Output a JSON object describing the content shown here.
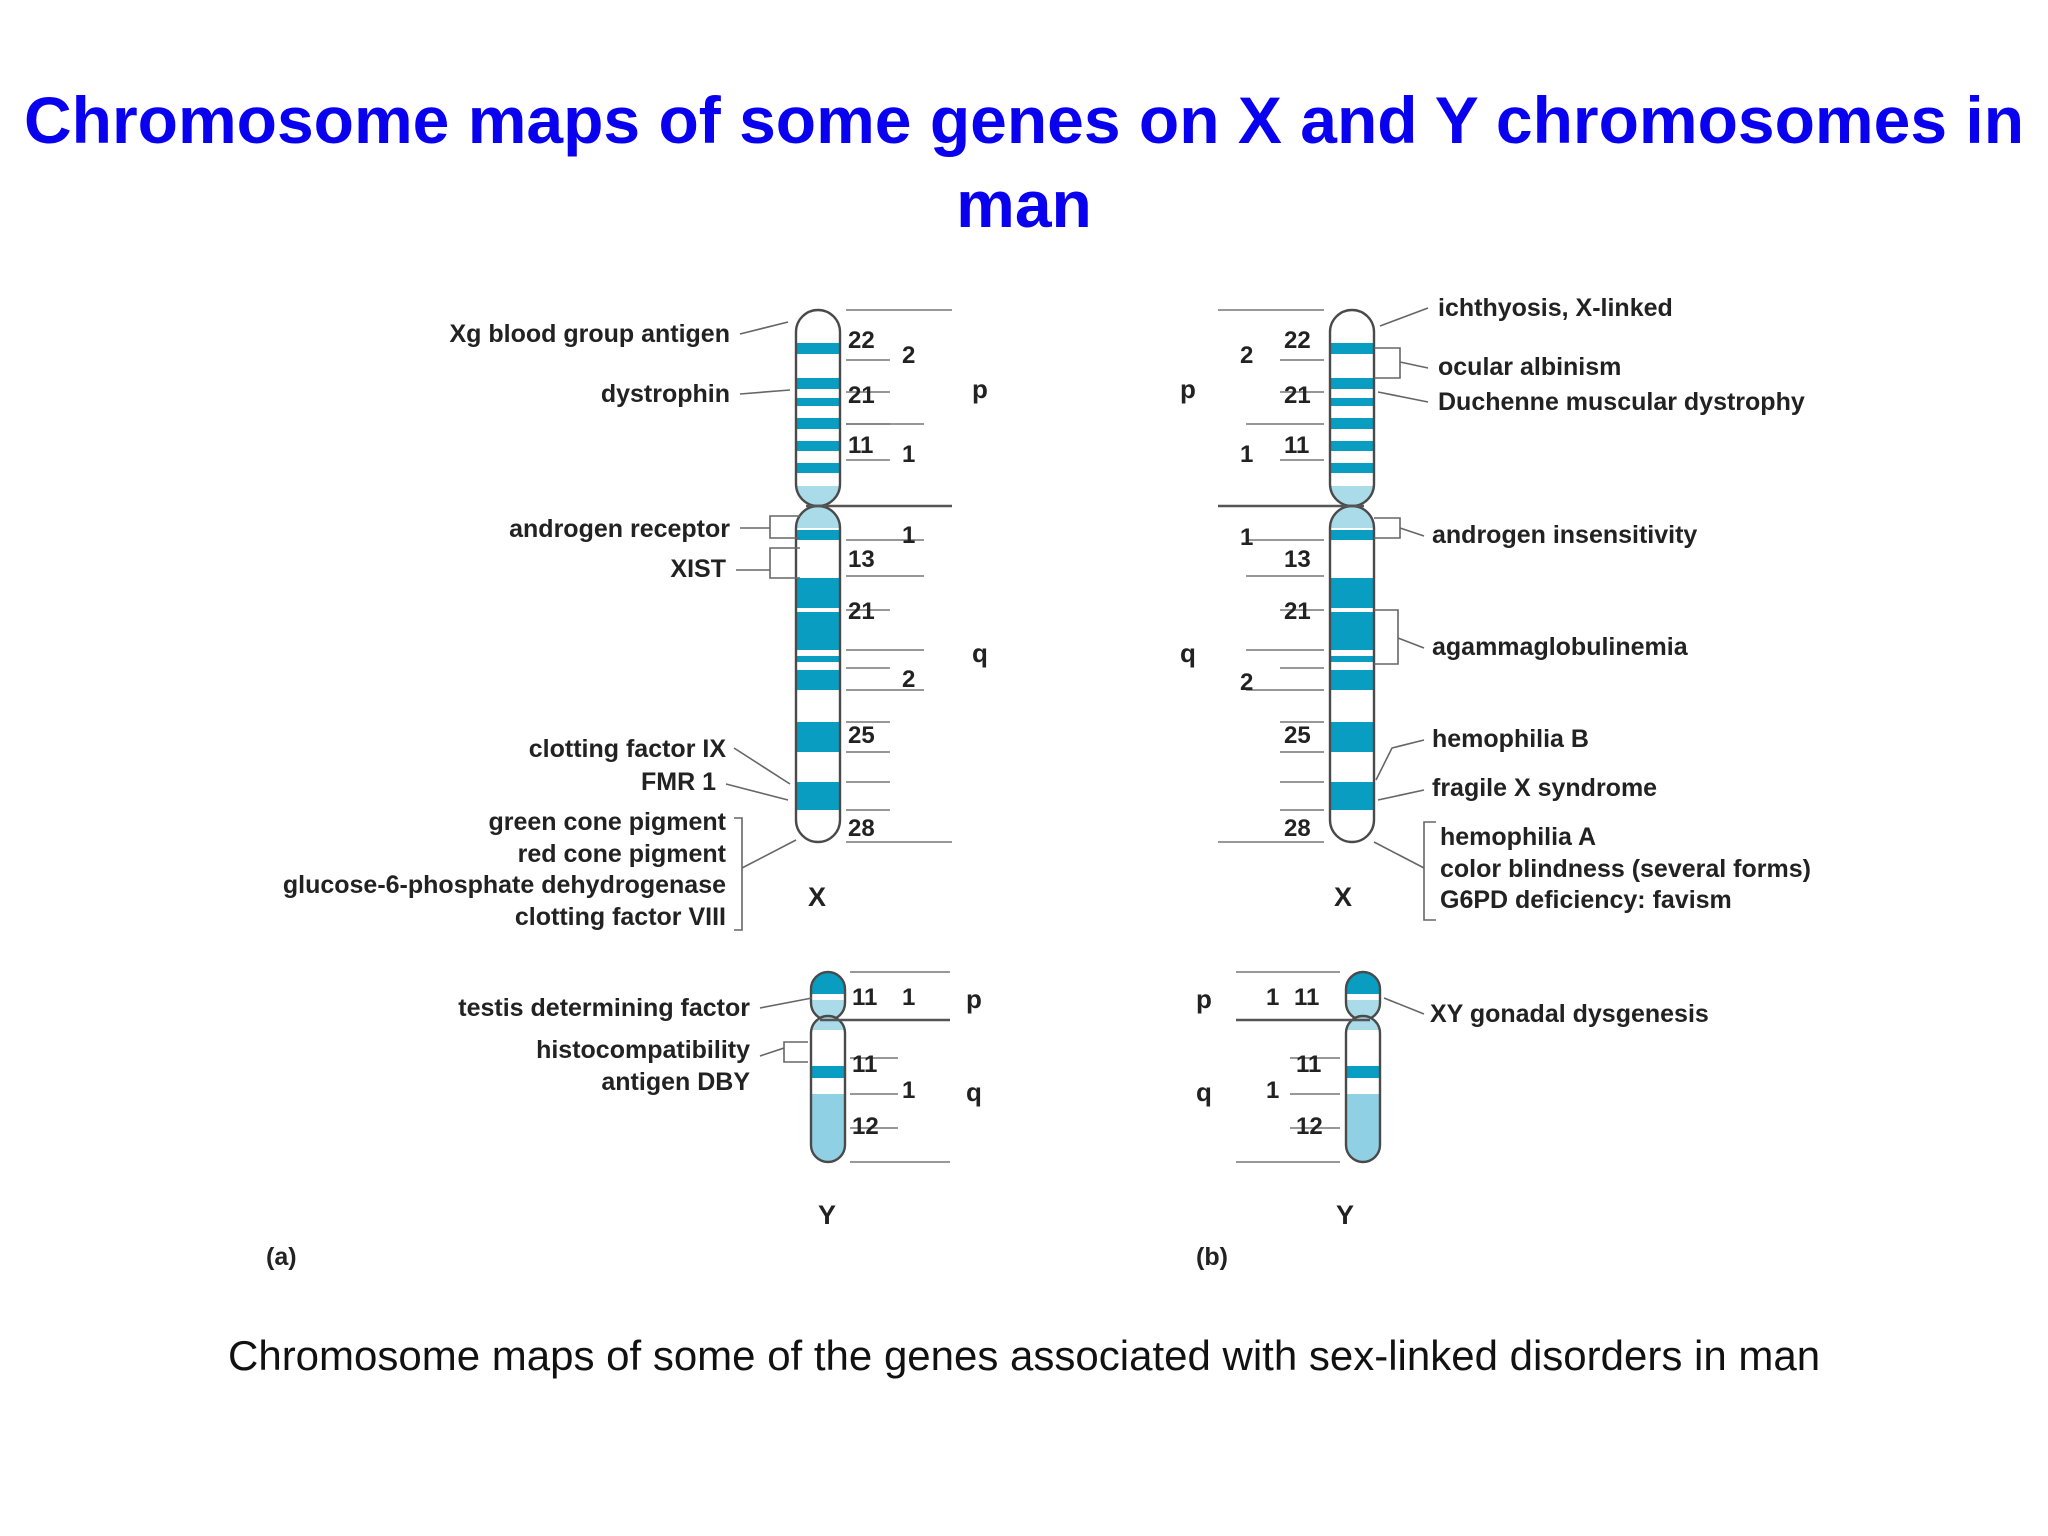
{
  "title": "Chromosome maps of some genes on X and Y chromosomes in man",
  "caption": "Chromosome maps of some of the genes associated with sex-linked disorders in man",
  "colors": {
    "title": "#0a00f0",
    "band_dark": "#0a9dc2",
    "band_light": "#a9dbe9",
    "band_mid": "#8fd0e4"
  },
  "panel_a": {
    "tag": "(a)",
    "x_chromosome": {
      "name": "X",
      "arm_p": "p",
      "arm_q": "q",
      "p_regions": [
        "2",
        "1"
      ],
      "p_bands": [
        "22",
        "21",
        "11"
      ],
      "q_regions": [
        "1",
        "2"
      ],
      "q_bands": [
        "13",
        "21",
        "25",
        "28"
      ],
      "genes": [
        "Xg blood group antigen",
        "dystrophin",
        "androgen receptor",
        "XIST",
        "clotting factor IX",
        "FMR 1",
        "green cone pigment",
        "red cone pigment",
        "glucose-6-phosphate dehydrogenase",
        "clotting factor VIII"
      ]
    },
    "y_chromosome": {
      "name": "Y",
      "arm_p": "p",
      "arm_q": "q",
      "p_region": "1",
      "p_band": "11",
      "q_region": "1",
      "q_bands": [
        "11",
        "12"
      ],
      "genes": [
        "testis determining factor",
        "histocompatibility",
        "antigen DBY"
      ]
    }
  },
  "panel_b": {
    "tag": "(b)",
    "x_chromosome": {
      "name": "X",
      "arm_p": "p",
      "arm_q": "q",
      "p_regions": [
        "2",
        "1"
      ],
      "p_bands": [
        "22",
        "21",
        "11"
      ],
      "q_regions": [
        "1",
        "2"
      ],
      "q_bands": [
        "13",
        "21",
        "25",
        "28"
      ],
      "disorders": [
        "ichthyosis, X-linked",
        "ocular albinism",
        "Duchenne muscular dystrophy",
        "androgen insensitivity",
        "agammaglobulinemia",
        "hemophilia B",
        "fragile X syndrome",
        "hemophilia A",
        "color blindness (several forms)",
        "G6PD deficiency: favism"
      ]
    },
    "y_chromosome": {
      "name": "Y",
      "arm_p": "p",
      "arm_q": "q",
      "p_region": "1",
      "p_band": "11",
      "q_region": "1",
      "q_bands": [
        "11",
        "12"
      ],
      "disorders": [
        "XY gonadal dysgenesis"
      ]
    }
  }
}
